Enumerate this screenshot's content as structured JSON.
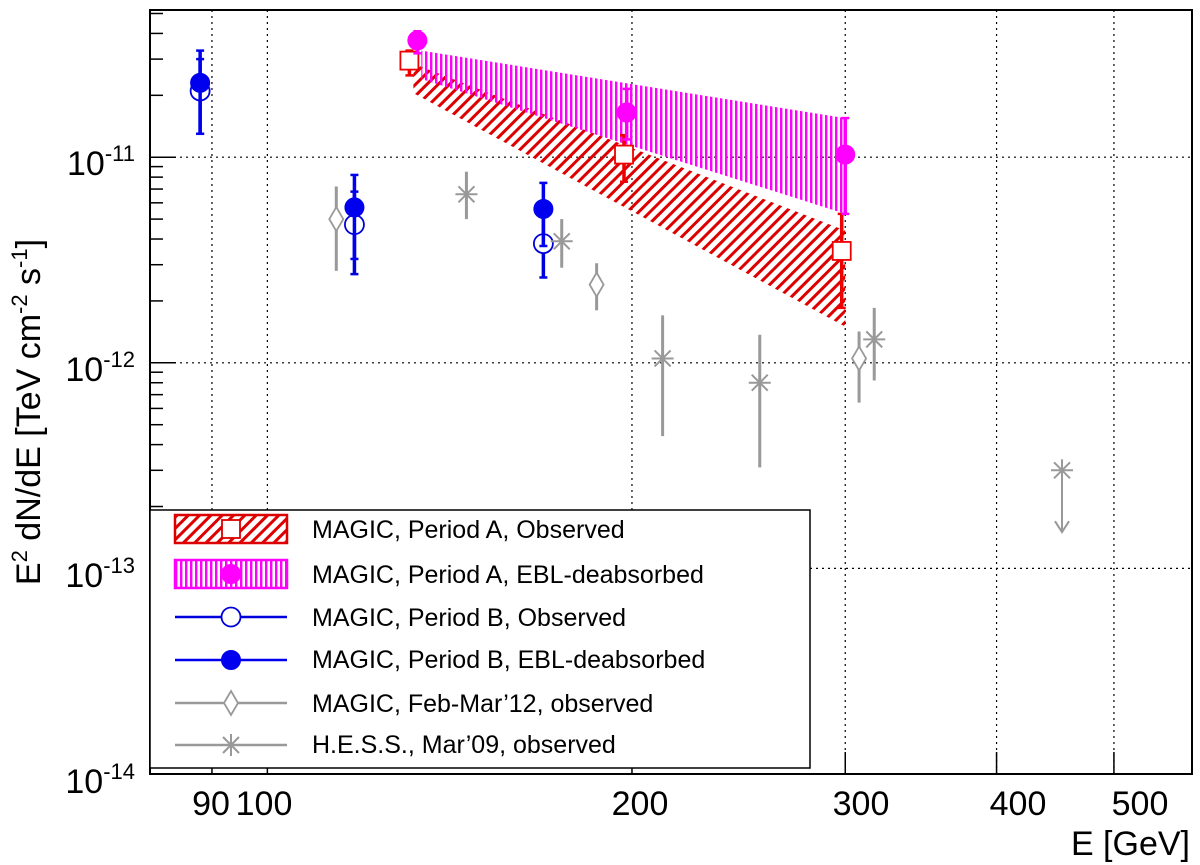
{
  "chart_data": {
    "type": "scatter",
    "xscale": "log",
    "yscale": "log",
    "xlim": [
      80,
      580
    ],
    "ylim": [
      1e-14,
      5.2e-11
    ],
    "grid": true,
    "xlabel": "E [GeV]",
    "ylabel": {
      "prefix": "E",
      "sup1": "2",
      "mid": " dN/dE [TeV cm",
      "sup2": "-2",
      "mid2": " s",
      "sup3": "-1",
      "suffix": "]"
    },
    "x_ticks": [
      {
        "value": 90,
        "label": "90"
      },
      {
        "value": 100,
        "label": "100"
      },
      {
        "value": 200,
        "label": "200"
      },
      {
        "value": 300,
        "label": "300"
      },
      {
        "value": 400,
        "label": "400"
      },
      {
        "value": 500,
        "label": "500"
      }
    ],
    "y_ticks": [
      {
        "value": 1e-14,
        "base": "10",
        "exp": "-14"
      },
      {
        "value": 1e-13,
        "base": "10",
        "exp": "-13"
      },
      {
        "value": 1e-12,
        "base": "10",
        "exp": "-12"
      },
      {
        "value": 1e-11,
        "base": "10",
        "exp": "-11"
      }
    ],
    "bands": [
      {
        "name": "MAGIC, Period A, Observed",
        "color": "#dd0000",
        "pattern": "diagonal",
        "x": [
          132,
          300
        ],
        "upper": [
          2.85e-11,
          4.4e-12
        ],
        "lower": [
          2.05e-11,
          1.5e-12
        ]
      },
      {
        "name": "MAGIC, Period A, EBL-deabsorbed",
        "color": "#ff00ff",
        "pattern": "vertical",
        "x": [
          134,
          300
        ],
        "upper": [
          3.3e-11,
          1.55e-11
        ],
        "lower": [
          2.4e-11,
          5.3e-12
        ]
      }
    ],
    "series": [
      {
        "name": "MAGIC, Period A, Observed",
        "color": "#ee0000",
        "marker": "open-square",
        "points": [
          {
            "x": 131,
            "y": 2.95e-11,
            "lo": 2.5e-11,
            "hi": 3.3e-11
          },
          {
            "x": 197,
            "y": 1.03e-11,
            "lo": 7.6e-12,
            "hi": 1.28e-11
          },
          {
            "x": 298,
            "y": 3.5e-12,
            "lo": 1.85e-12,
            "hi": 5.3e-12
          }
        ]
      },
      {
        "name": "MAGIC, Period A, EBL-deabsorbed",
        "color": "#ff00ff",
        "marker": "filled-circle",
        "points": [
          {
            "x": 133,
            "y": 3.7e-11,
            "lo": 3.2e-11,
            "hi": 4.1e-11
          },
          {
            "x": 198,
            "y": 1.65e-11,
            "lo": 1.22e-11,
            "hi": 2.15e-11
          },
          {
            "x": 300,
            "y": 1.03e-11,
            "lo": 5.3e-12,
            "hi": 1.55e-11
          }
        ]
      },
      {
        "name": "MAGIC, Period B, Observed",
        "color": "#0000dd",
        "marker": "open-circle",
        "points": [
          {
            "x": 88,
            "y": 2.1e-11,
            "lo": 1.3e-11,
            "hi": 3e-11
          },
          {
            "x": 118,
            "y": 4.7e-12,
            "lo": 2.7e-12,
            "hi": 6.8e-12
          },
          {
            "x": 169,
            "y": 3.8e-12,
            "lo": 2.6e-12,
            "hi": 5.2e-12
          }
        ]
      },
      {
        "name": "MAGIC, Period B, EBL-deabsorbed",
        "color": "#0000ee",
        "marker": "filled-circle",
        "points": [
          {
            "x": 88,
            "y": 2.3e-11,
            "lo": 1.3e-11,
            "hi": 3.3e-11
          },
          {
            "x": 118,
            "y": 5.7e-12,
            "lo": 3.2e-12,
            "hi": 8.2e-12
          },
          {
            "x": 169,
            "y": 5.6e-12,
            "lo": 3.7e-12,
            "hi": 7.5e-12
          }
        ]
      },
      {
        "name": "MAGIC, Feb-Mar’12, observed",
        "color": "#999999",
        "marker": "open-diamond",
        "points": [
          {
            "x": 114,
            "y": 5e-12,
            "lo": 2.8e-12,
            "hi": 7.2e-12
          },
          {
            "x": 187,
            "y": 2.4e-12,
            "lo": 1.8e-12,
            "hi": 3.05e-12
          },
          {
            "x": 308,
            "y": 1.05e-12,
            "lo": 6.4e-13,
            "hi": 1.42e-12
          }
        ]
      },
      {
        "name": "H.E.S.S., Mar’09, observed",
        "color": "#999999",
        "marker": "star",
        "points": [
          {
            "x": 146,
            "y": 6.6e-12,
            "lo": 5e-12,
            "hi": 8.5e-12
          },
          {
            "x": 175,
            "y": 3.9e-12,
            "lo": 2.9e-12,
            "hi": 5e-12
          },
          {
            "x": 212,
            "y": 1.05e-12,
            "lo": 4.4e-13,
            "hi": 1.7e-12
          },
          {
            "x": 255,
            "y": 8e-13,
            "lo": 3.1e-13,
            "hi": 1.37e-12
          },
          {
            "x": 317,
            "y": 1.3e-12,
            "lo": 8.2e-13,
            "hi": 1.85e-12
          },
          {
            "x": 453,
            "y": 3e-13,
            "upper_limit": true,
            "arrow_to": 1.5e-13
          }
        ]
      }
    ],
    "legend": {
      "position": "bottom-left",
      "entries": [
        {
          "label": "MAGIC, Period A, Observed",
          "style": "band-diagonal",
          "color": "#dd0000",
          "marker": "open-square"
        },
        {
          "label": "MAGIC, Period A, EBL-deabsorbed",
          "style": "band-vertical",
          "color": "#ff00ff",
          "marker": "filled-circle"
        },
        {
          "label": "MAGIC, Period B, Observed",
          "style": "line",
          "color": "#0000dd",
          "marker": "open-circle"
        },
        {
          "label": "MAGIC, Period B, EBL-deabsorbed",
          "style": "line",
          "color": "#0000ee",
          "marker": "filled-circle"
        },
        {
          "label": "MAGIC, Feb-Mar’12, observed",
          "style": "line",
          "color": "#999999",
          "marker": "open-diamond"
        },
        {
          "label": "H.E.S.S., Mar’09, observed",
          "style": "line",
          "color": "#999999",
          "marker": "star"
        }
      ]
    }
  }
}
